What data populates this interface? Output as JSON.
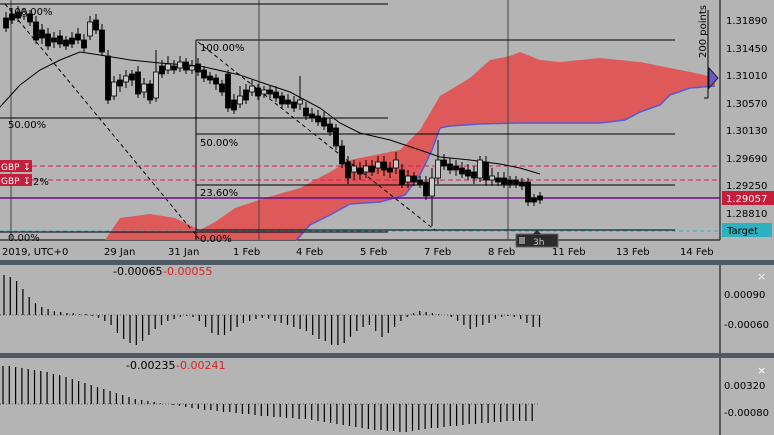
{
  "main_chart": {
    "price_labels": [
      "1.31890",
      "1.31450",
      "1.31010",
      "1.30570",
      "1.30130",
      "1.29690",
      "1.29250",
      "1.28810"
    ],
    "current_price": "1.29057",
    "target_label": "Target",
    "range_label": "200 points",
    "date_labels": [
      "2019, UTC+0",
      "29 Jan",
      "31 Jan",
      "1 Feb",
      "4 Feb",
      "5 Feb",
      "7 Feb",
      "8 Feb",
      "11 Feb",
      "13 Feb",
      "14 Feb"
    ],
    "fib_levels_left": [
      "100.00%",
      "50.00%",
      "0.00%"
    ],
    "fib_levels_right": [
      "100.00%",
      "50.00%",
      "23.60%",
      "0.00%"
    ],
    "order_tags": [
      "GBP",
      "GBP"
    ],
    "order_tag_suffix": "2%",
    "timeframe_badge": "3h",
    "colors": {
      "background": "#b4b4b4",
      "cloud": "#e05555",
      "current_price_bg": "#c41e3a",
      "target_bg": "#2fb0bf",
      "bull": "#c8c8c8",
      "bear": "#000000"
    }
  },
  "indicator1": {
    "value1": "-0.00065",
    "value2": "-0.00055",
    "axis_labels": [
      "0.00090",
      "-0.00060"
    ],
    "close_label": "×"
  },
  "indicator2": {
    "value1": "-0.00235",
    "value2": "-0.00241",
    "axis_labels": [
      "0.00320",
      "-0.00080"
    ],
    "close_label": "×"
  }
}
